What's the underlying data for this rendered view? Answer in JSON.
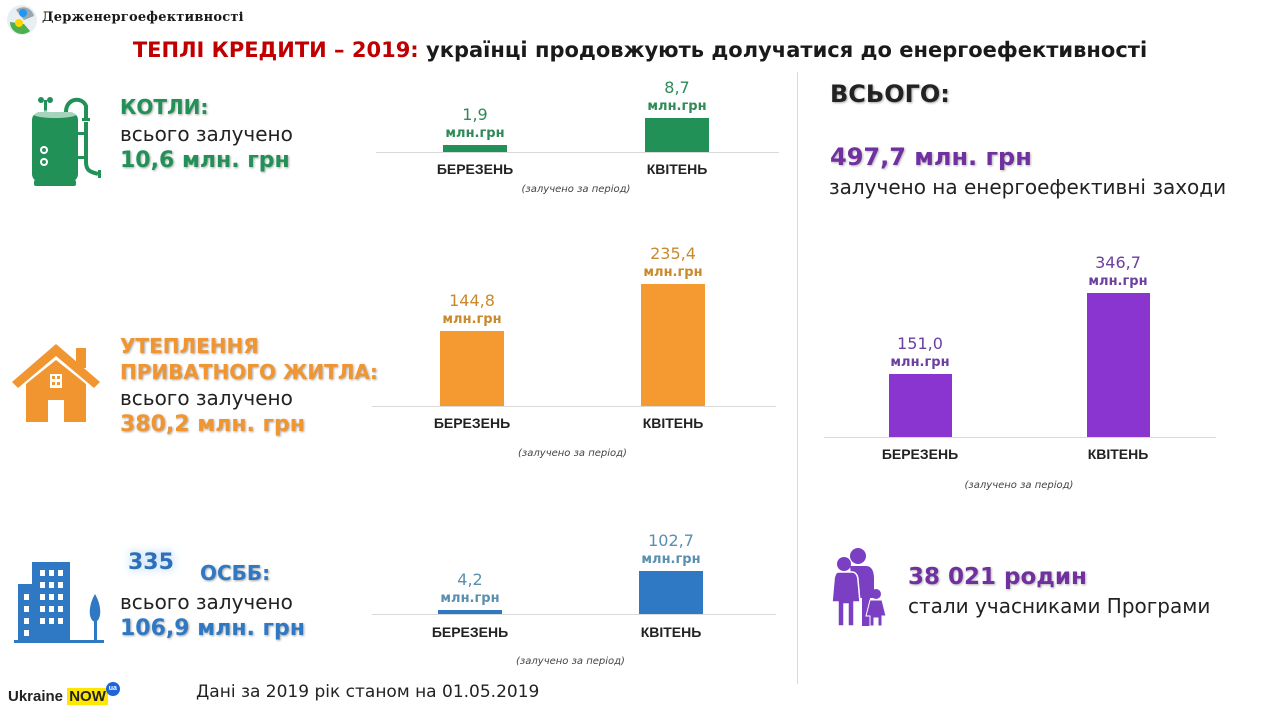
{
  "header": {
    "org_name": "Держенергоефективності",
    "title_highlight": "ТЕПЛІ КРЕДИТИ – 2019:",
    "title_rest": " українці продовжують долучатися до енергоефективності"
  },
  "categories": [
    {
      "id": "boilers",
      "icon": "boiler-icon",
      "prefix": "",
      "title_lines": [
        "КОТЛИ:"
      ],
      "subtitle": "всього залучено",
      "total": "10,6 млн. грн",
      "color": "#219157"
    },
    {
      "id": "insulation",
      "icon": "house-icon",
      "prefix": "",
      "title_lines": [
        "УТЕПЛЕННЯ",
        "ПРИВАТНОГО  ЖИТЛА:"
      ],
      "subtitle": "всього залучено",
      "total": "380,2 млн. грн",
      "color": "#f0952f"
    },
    {
      "id": "osbb",
      "icon": "apartment-building-icon",
      "prefix": "335",
      "title_lines": [
        "ОСББ:"
      ],
      "subtitle": "всього залучено",
      "total": "106,9 млн. грн",
      "color": "#2f78c4"
    }
  ],
  "summary": {
    "heading": "ВСЬОГО:",
    "total": "497,7 млн. грн",
    "description": "залучено на енергоефективні заходи",
    "families_value": "38 021 родин",
    "families_desc": "стали учасниками Програми",
    "families_icon": "family-icon",
    "color": "#7030a0"
  },
  "footer": {
    "note": "Дані за 2019 рік станом на 01.05.2019",
    "logo_text": "Ukraine",
    "logo_highlight": "NOW",
    "logo_badge": "ua"
  },
  "chart_data": [
    {
      "type": "bar",
      "title": "КОТЛИ",
      "categories": [
        "БЕРЕЗЕНЬ",
        "КВІТЕНЬ"
      ],
      "values": [
        1.9,
        8.7
      ],
      "labels": [
        "1,9",
        "8,7"
      ],
      "unit": "млн.грн",
      "note": "(залучено  за період)",
      "bar_color": "#219157",
      "label_color": "#2e8b57",
      "xlabel": "",
      "ylabel": ""
    },
    {
      "type": "bar",
      "title": "УТЕПЛЕННЯ ПРИВАТНОГО ЖИТЛА",
      "categories": [
        "БЕРЕЗЕНЬ",
        "КВІТЕНЬ"
      ],
      "values": [
        144.8,
        235.4
      ],
      "labels": [
        "144,8",
        "235,4"
      ],
      "unit": "млн.грн",
      "note": "(залучено  за період)",
      "bar_color": "#f59a30",
      "label_color": "#c98a2c",
      "xlabel": "",
      "ylabel": ""
    },
    {
      "type": "bar",
      "title": "ОСББ",
      "categories": [
        "БЕРЕЗЕНЬ",
        "КВІТЕНЬ"
      ],
      "values": [
        4.2,
        102.7
      ],
      "labels": [
        "4,2",
        "102,7"
      ],
      "unit": "млн.грн",
      "note": "(залучено  за період)",
      "bar_color": "#2f78c4",
      "label_color": "#5b8fb0",
      "xlabel": "",
      "ylabel": ""
    },
    {
      "type": "bar",
      "title": "ВСЬОГО",
      "categories": [
        "БЕРЕЗЕНЬ",
        "КВІТЕНЬ"
      ],
      "values": [
        151.0,
        346.7
      ],
      "labels": [
        "151,0",
        "346,7"
      ],
      "unit": "млн.грн",
      "note": "(залучено  за період)",
      "bar_color": "#8a35d0",
      "label_color": "#6c3fa0",
      "xlabel": "",
      "ylabel": ""
    }
  ]
}
